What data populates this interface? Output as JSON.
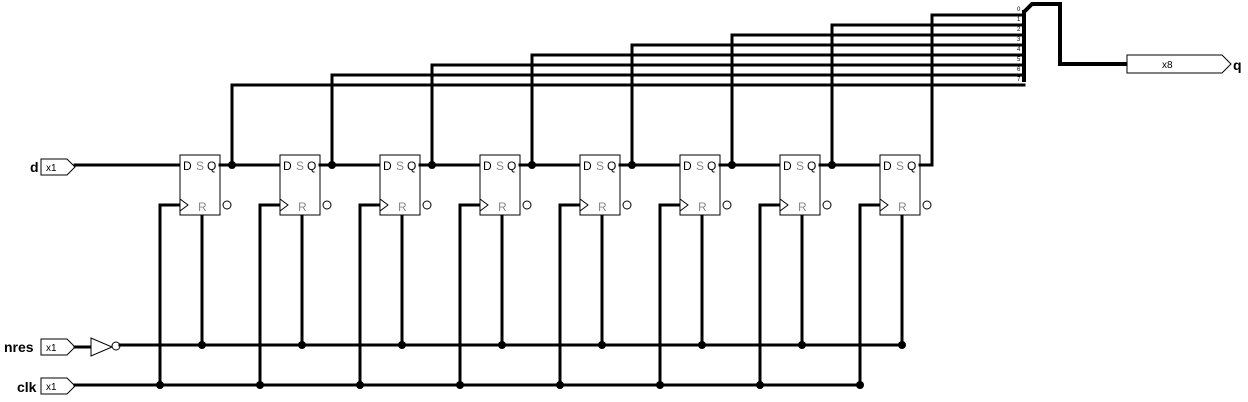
{
  "inputs": {
    "d": {
      "name": "d",
      "width": "x1"
    },
    "nres": {
      "name": "nres",
      "width": "x1"
    },
    "clk": {
      "name": "clk",
      "width": "x1"
    }
  },
  "output": {
    "name": "q",
    "width": "x8"
  },
  "flipflop": {
    "d_pin": "D",
    "s_pin": "S",
    "q_pin": "Q",
    "r_pin": "R"
  },
  "bus_bits": [
    "0",
    "1",
    "2",
    "3",
    "4",
    "5",
    "6",
    "7"
  ]
}
